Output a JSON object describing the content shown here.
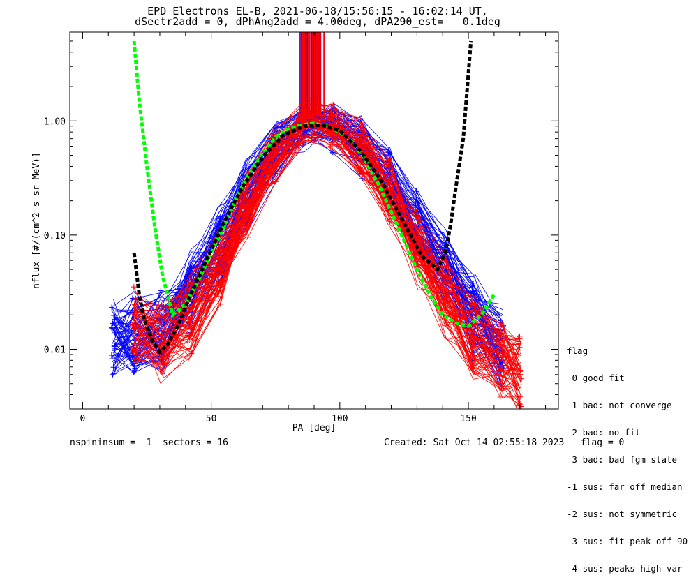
{
  "header": {
    "title_line1": "EPD Electrons EL-B, 2021-06-18/15:56:15 - 16:02:14 UT,",
    "title_line2": "dSectr2add = 0, dPhAng2add = 4.00deg, dPA290_est=   0.1deg"
  },
  "footer": {
    "left": "nspininsum =  1  sectors = 16",
    "right": "Created: Sat Oct 14 02:55:18 2023   flag = 0"
  },
  "legend": {
    "title": "flag",
    "items": [
      " 0 good fit",
      " 1 bad: not converge",
      " 2 bad: no fit",
      " 3 bad: bad fgm state",
      "-1 sus: far off median",
      "-2 sus: not symmetric",
      "-3 sus: fit peak off 90",
      "-4 sus: peaks high var"
    ]
  },
  "chart_data": {
    "type": "line",
    "title": "EPD Electrons EL-B, 2021-06-18/15:56:15 - 16:02:14 UT, dSectr2add = 0, dPhAng2add = 4.00deg, dPA290_est=   0.1deg",
    "xlabel": "PA [deg]",
    "ylabel": "nflux [#/(cm^2 s sr MeV)]",
    "xlim": [
      -5,
      185
    ],
    "ylim": [
      0.003,
      6.0
    ],
    "yscale": "log",
    "xticks": [
      0,
      50,
      100,
      150
    ],
    "xtick_labels": [
      "0",
      "50",
      "100",
      "150"
    ],
    "yticks": [
      0.01,
      0.1,
      1.0
    ],
    "ytick_labels": [
      "0.01",
      "0.10",
      "1.00"
    ],
    "grid": false,
    "colors": {
      "red": "#ff0000",
      "blue": "#0000ff",
      "green": "#00ff00",
      "black": "#000000"
    },
    "series": [
      {
        "color": "blue",
        "x": [
          12,
          20,
          31,
          42,
          53,
          64,
          75,
          86,
          97,
          108,
          119,
          130,
          141,
          152,
          163
        ],
        "y": [
          0.012,
          0.013,
          0.015,
          0.03,
          0.08,
          0.22,
          0.55,
          0.88,
          0.9,
          0.6,
          0.3,
          0.12,
          0.05,
          0.02,
          0.01
        ]
      },
      {
        "color": "red",
        "x": [
          20,
          31,
          42,
          53,
          64,
          75,
          86,
          97,
          108,
          119,
          130,
          141,
          152,
          163,
          170
        ],
        "y": [
          0.015,
          0.012,
          0.02,
          0.05,
          0.18,
          0.5,
          0.95,
          0.9,
          0.55,
          0.25,
          0.08,
          0.03,
          0.012,
          0.008,
          0.006
        ]
      },
      {
        "color": "green",
        "x": [
          20,
          22,
          25,
          28,
          31,
          35,
          40,
          45,
          50,
          55,
          60,
          65,
          70,
          75,
          80,
          85,
          90,
          95,
          100,
          105,
          110,
          115,
          120,
          125,
          130,
          135,
          140,
          145,
          150,
          155,
          160
        ],
        "y": [
          5.0,
          1.5,
          0.4,
          0.12,
          0.045,
          0.02,
          0.025,
          0.04,
          0.07,
          0.12,
          0.22,
          0.35,
          0.52,
          0.72,
          0.85,
          0.92,
          0.95,
          0.9,
          0.8,
          0.65,
          0.45,
          0.28,
          0.16,
          0.09,
          0.05,
          0.03,
          0.02,
          0.017,
          0.016,
          0.02,
          0.03
        ]
      },
      {
        "color": "black",
        "x": [
          20,
          22,
          24,
          27,
          30,
          33,
          37,
          42,
          48,
          55,
          62,
          70,
          78,
          86,
          93,
          100,
          108,
          116,
          124,
          132,
          138,
          141,
          143,
          145,
          148,
          151
        ],
        "y": [
          0.07,
          0.03,
          0.018,
          0.012,
          0.0095,
          0.011,
          0.016,
          0.03,
          0.06,
          0.13,
          0.26,
          0.48,
          0.75,
          0.9,
          0.92,
          0.82,
          0.55,
          0.3,
          0.14,
          0.065,
          0.05,
          0.07,
          0.12,
          0.25,
          0.7,
          5.0
        ]
      }
    ]
  }
}
